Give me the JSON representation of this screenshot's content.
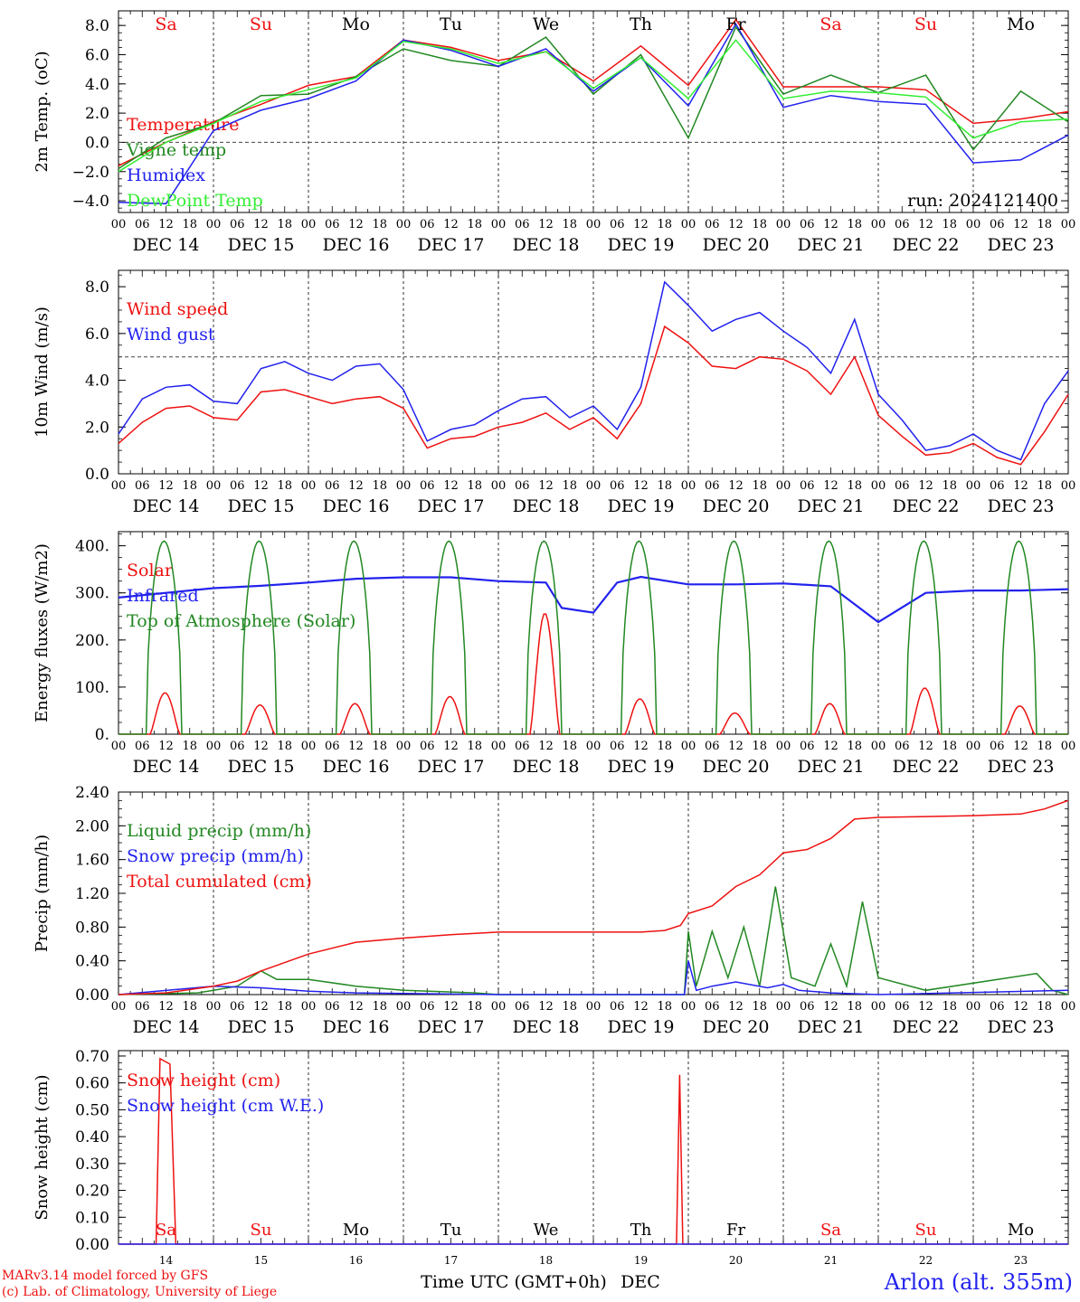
{
  "header_days": [
    "Sa",
    "Su",
    "Mo",
    "Tu",
    "We",
    "Th",
    "Fr",
    "Sa",
    "Su",
    "Mo"
  ],
  "weekend_color": "#ee1111",
  "weekday_color": "#000000",
  "hour_labels": [
    "00",
    "06",
    "12",
    "18"
  ],
  "last_hour_label": "00",
  "date_labels": [
    "DEC 14",
    "DEC 15",
    "DEC 16",
    "DEC 17",
    "DEC 18",
    "DEC 19",
    "DEC 20",
    "DEC 21",
    "DEC 22",
    "DEC 23"
  ],
  "bottom_day_numbers": [
    "14",
    "15",
    "16",
    "17",
    "18",
    "19",
    "20",
    "21",
    "22",
    "23"
  ],
  "x_axis_title": "Time UTC (GMT+0h)",
  "x_axis_month": "DEC",
  "run_label": "run: 2024121400",
  "footer": {
    "model_line": "MARv3.14 model forced by GFS",
    "copyright_line": "(c) Lab. of Climatology, University of Liege",
    "location": "Arlon (alt. 355m)"
  },
  "colors": {
    "red": "#ee1111",
    "green": "#228822",
    "blue": "#2222ee",
    "lightgreen": "#33ee33"
  },
  "chart_data": [
    {
      "type": "line",
      "ylabel": "2m Temp. (oC)",
      "ylim": [
        -4.8,
        9.0
      ],
      "ytick_labels": [
        "8.0",
        "6.0",
        "4.0",
        "2.0",
        "0.0",
        "−2.0",
        "−4.0"
      ],
      "yticks": [
        8,
        6,
        4,
        2,
        0,
        -2,
        -4
      ],
      "reference_line": 0,
      "x_hours": [
        0,
        12,
        24,
        36,
        48,
        60,
        72,
        84,
        96,
        108,
        120,
        132,
        144,
        156,
        168,
        180,
        192,
        204,
        216,
        228,
        240
      ],
      "series": [
        {
          "name": "Temperature",
          "color": "red",
          "values": [
            -1.6,
            0.0,
            1.4,
            2.6,
            3.9,
            4.5,
            7.0,
            6.5,
            5.6,
            6.2,
            4.2,
            6.6,
            3.9,
            8.4,
            3.8,
            3.8,
            3.8,
            3.6,
            1.3,
            1.6,
            2.1
          ]
        },
        {
          "name": "Vigne temp",
          "color": "green",
          "values": [
            -1.8,
            0.3,
            1.3,
            3.2,
            3.3,
            4.5,
            6.4,
            5.6,
            5.2,
            7.2,
            3.3,
            6.0,
            0.3,
            7.9,
            3.3,
            4.6,
            3.4,
            4.6,
            -0.5,
            3.5,
            1.4
          ]
        },
        {
          "name": "Humidex",
          "color": "blue",
          "values": [
            -4.1,
            -4.2,
            0.8,
            2.2,
            3.0,
            4.2,
            7.0,
            6.3,
            5.2,
            6.4,
            3.5,
            5.8,
            2.5,
            8.1,
            2.4,
            3.2,
            2.8,
            2.6,
            -1.4,
            -1.2,
            0.5
          ]
        },
        {
          "name": "DewPoint Temp",
          "color": "lightgreen",
          "values": [
            -2.0,
            0.0,
            1.3,
            2.8,
            3.6,
            4.4,
            6.9,
            6.4,
            5.4,
            6.2,
            3.7,
            5.8,
            3.0,
            7.0,
            3.0,
            3.5,
            3.4,
            3.1,
            0.3,
            1.4,
            1.6
          ]
        }
      ]
    },
    {
      "type": "line",
      "ylabel": "10m Wind (m/s)",
      "ylim": [
        0,
        8.7
      ],
      "ytick_labels": [
        "8.0",
        "6.0",
        "4.0",
        "2.0",
        "0.0"
      ],
      "yticks": [
        8,
        6,
        4,
        2,
        0
      ],
      "reference_line": 5,
      "x_hours": [
        0,
        6,
        12,
        18,
        24,
        30,
        36,
        42,
        48,
        54,
        60,
        66,
        72,
        78,
        84,
        90,
        96,
        102,
        108,
        114,
        120,
        126,
        132,
        138,
        144,
        150,
        156,
        162,
        168,
        174,
        180,
        186,
        192,
        198,
        204,
        210,
        216,
        222,
        228,
        234,
        240
      ],
      "series": [
        {
          "name": "Wind speed",
          "color": "red",
          "values": [
            1.3,
            2.2,
            2.8,
            2.9,
            2.4,
            2.3,
            3.5,
            3.6,
            3.3,
            3.0,
            3.2,
            3.3,
            2.8,
            1.1,
            1.5,
            1.6,
            2.0,
            2.2,
            2.6,
            1.9,
            2.4,
            1.5,
            3.0,
            6.3,
            5.6,
            4.6,
            4.5,
            5.0,
            4.9,
            4.4,
            3.4,
            5.0,
            2.5,
            1.6,
            0.8,
            0.9,
            1.3,
            0.7,
            0.4,
            1.8,
            3.4
          ]
        },
        {
          "name": "Wind gust",
          "color": "blue",
          "values": [
            1.7,
            3.2,
            3.7,
            3.8,
            3.1,
            3.0,
            4.5,
            4.8,
            4.3,
            4.0,
            4.6,
            4.7,
            3.6,
            1.4,
            1.9,
            2.1,
            2.7,
            3.2,
            3.3,
            2.4,
            2.9,
            1.9,
            3.7,
            8.2,
            7.2,
            6.1,
            6.6,
            6.9,
            6.1,
            5.4,
            4.3,
            6.6,
            3.4,
            2.3,
            1.0,
            1.2,
            1.7,
            1.0,
            0.6,
            3.0,
            4.4
          ]
        }
      ]
    },
    {
      "type": "line",
      "ylabel": "Energy fluxes (W/m2)",
      "ylim": [
        0,
        430
      ],
      "ytick_labels": [
        "400.",
        "300.",
        "200.",
        "100.",
        "0."
      ],
      "yticks": [
        400,
        300,
        200,
        100,
        0
      ],
      "series": [
        {
          "name": "Solar",
          "color": "red",
          "daily_peaks": [
            88,
            62,
            65,
            80,
            257,
            75,
            45,
            65,
            98,
            60
          ]
        },
        {
          "name": "Infrared",
          "color": "blue",
          "x_hours": [
            0,
            12,
            24,
            36,
            48,
            60,
            72,
            84,
            96,
            108,
            112,
            120,
            126,
            132,
            144,
            156,
            168,
            180,
            192,
            204,
            216,
            228,
            240
          ],
          "values": [
            290,
            300,
            310,
            315,
            322,
            330,
            333,
            333,
            325,
            322,
            268,
            258,
            322,
            334,
            318,
            318,
            320,
            314,
            238,
            300,
            305,
            305,
            308
          ]
        },
        {
          "name": "Top of Atmosphere (Solar)",
          "color": "green",
          "daily_peak": 410
        }
      ]
    },
    {
      "type": "line",
      "ylabel": "Precip (mm/h)",
      "ylim": [
        0,
        2.4
      ],
      "ytick_labels": [
        "2.40",
        "2.00",
        "1.60",
        "1.20",
        "0.80",
        "0.40",
        "0.00"
      ],
      "yticks": [
        2.4,
        2.0,
        1.6,
        1.2,
        0.8,
        0.4,
        0.0
      ],
      "series": [
        {
          "name": "Liquid precip (mm/h)",
          "color": "green",
          "x_hours": [
            0,
            20,
            24,
            30,
            36,
            40,
            48,
            60,
            72,
            90,
            96,
            120,
            143,
            144,
            146,
            150,
            154,
            158,
            162,
            166,
            170,
            176,
            180,
            184,
            188,
            192,
            204,
            232,
            236,
            240
          ],
          "values": [
            0,
            0.02,
            0.05,
            0.1,
            0.28,
            0.18,
            0.18,
            0.1,
            0.05,
            0.02,
            0,
            0,
            0,
            0.75,
            0.1,
            0.75,
            0.2,
            0.8,
            0.1,
            1.28,
            0.2,
            0.1,
            0.6,
            0.1,
            1.1,
            0.2,
            0.05,
            0.25,
            0.05,
            0.0
          ]
        },
        {
          "name": "Snow precip (mm/h)",
          "color": "blue",
          "x_hours": [
            0,
            24,
            36,
            48,
            60,
            96,
            143,
            144,
            146,
            150,
            156,
            164,
            168,
            172,
            180,
            192,
            240
          ],
          "values": [
            0,
            0.1,
            0.08,
            0.04,
            0.02,
            0,
            0,
            0.4,
            0.05,
            0.1,
            0.15,
            0.08,
            0.12,
            0.05,
            0.02,
            0,
            0.05
          ]
        },
        {
          "name": "Total cumulated (cm)",
          "color": "red",
          "x_hours": [
            0,
            12,
            24,
            30,
            36,
            48,
            60,
            72,
            84,
            96,
            108,
            120,
            132,
            138,
            142,
            144,
            150,
            156,
            162,
            168,
            174,
            180,
            186,
            192,
            204,
            216,
            228,
            234,
            240
          ],
          "values": [
            0,
            0.02,
            0.1,
            0.16,
            0.28,
            0.48,
            0.62,
            0.67,
            0.71,
            0.74,
            0.74,
            0.74,
            0.74,
            0.76,
            0.82,
            0.96,
            1.05,
            1.28,
            1.42,
            1.68,
            1.72,
            1.85,
            2.08,
            2.1,
            2.11,
            2.12,
            2.14,
            2.2,
            2.3
          ]
        }
      ]
    },
    {
      "type": "line",
      "ylabel": "Snow height (cm)",
      "ylim": [
        0,
        0.72
      ],
      "ytick_labels": [
        "0.70",
        "0.60",
        "0.50",
        "0.40",
        "0.30",
        "0.20",
        "0.10",
        "0.00"
      ],
      "yticks": [
        0.7,
        0.6,
        0.5,
        0.4,
        0.3,
        0.2,
        0.1,
        0.0
      ],
      "series": [
        {
          "name": "Snow height (cm)",
          "color": "red",
          "x_hours": [
            0,
            9.5,
            10.5,
            13,
            14.5,
            140,
            141,
            141.8,
            142.6,
            240
          ],
          "values": [
            0,
            0,
            0.69,
            0.67,
            0,
            0,
            0,
            0.63,
            0,
            0
          ]
        },
        {
          "name": "Snow height (cm W.E.)",
          "color": "blue",
          "x_hours": [
            0,
            240
          ],
          "values": [
            0,
            0
          ]
        }
      ]
    }
  ]
}
